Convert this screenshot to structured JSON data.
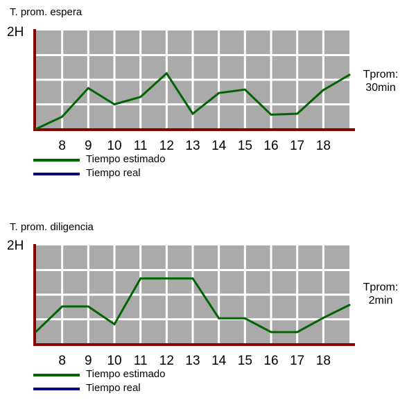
{
  "charts": [
    {
      "id": "espera",
      "title": "T. prom. espera",
      "y_max_label": "2H",
      "tprom_label": "Tprom:",
      "tprom_value": "30min"
    },
    {
      "id": "diligencia",
      "title": "T. prom. diligencia",
      "y_max_label": "2H",
      "tprom_label": "Tprom:",
      "tprom_value": "2min"
    }
  ],
  "legend": [
    {
      "label": "Tiempo estimado",
      "color": "#006400"
    },
    {
      "label": "Tiempo real",
      "color": "#000080"
    }
  ],
  "colors": {
    "plot_bg": "#aaaaaa",
    "grid": "#ffffff",
    "axis": "#8b0000",
    "line": "#006400"
  },
  "chart_data": [
    {
      "type": "line",
      "title": "T. prom. espera",
      "xlabel": "",
      "ylabel": "",
      "x_ticks": [
        "8",
        "9",
        "10",
        "11",
        "12",
        "13",
        "14",
        "15",
        "16",
        "17",
        "18"
      ],
      "x": [
        7,
        8,
        9,
        10,
        11,
        12,
        13,
        14,
        15,
        16,
        17,
        18,
        19
      ],
      "series": [
        {
          "values": [
            0.0,
            0.25,
            0.83,
            0.5,
            0.65,
            1.13,
            0.31,
            0.73,
            0.8,
            0.29,
            0.31,
            0.79,
            1.1
          ]
        }
      ],
      "ylim": [
        0,
        2
      ],
      "grid": true
    },
    {
      "type": "line",
      "title": "T. prom. diligencia",
      "xlabel": "",
      "ylabel": "",
      "x_ticks": [
        "8",
        "9",
        "10",
        "11",
        "12",
        "13",
        "14",
        "15",
        "16",
        "17",
        "18"
      ],
      "x": [
        7,
        8,
        9,
        10,
        11,
        12,
        13,
        14,
        15,
        16,
        17,
        18,
        19
      ],
      "series": [
        {
          "values": [
            0.25,
            0.76,
            0.76,
            0.4,
            1.33,
            1.33,
            1.33,
            0.52,
            0.52,
            0.24,
            0.24,
            0.53,
            0.79
          ]
        }
      ],
      "ylim": [
        0,
        2
      ],
      "grid": true
    }
  ]
}
